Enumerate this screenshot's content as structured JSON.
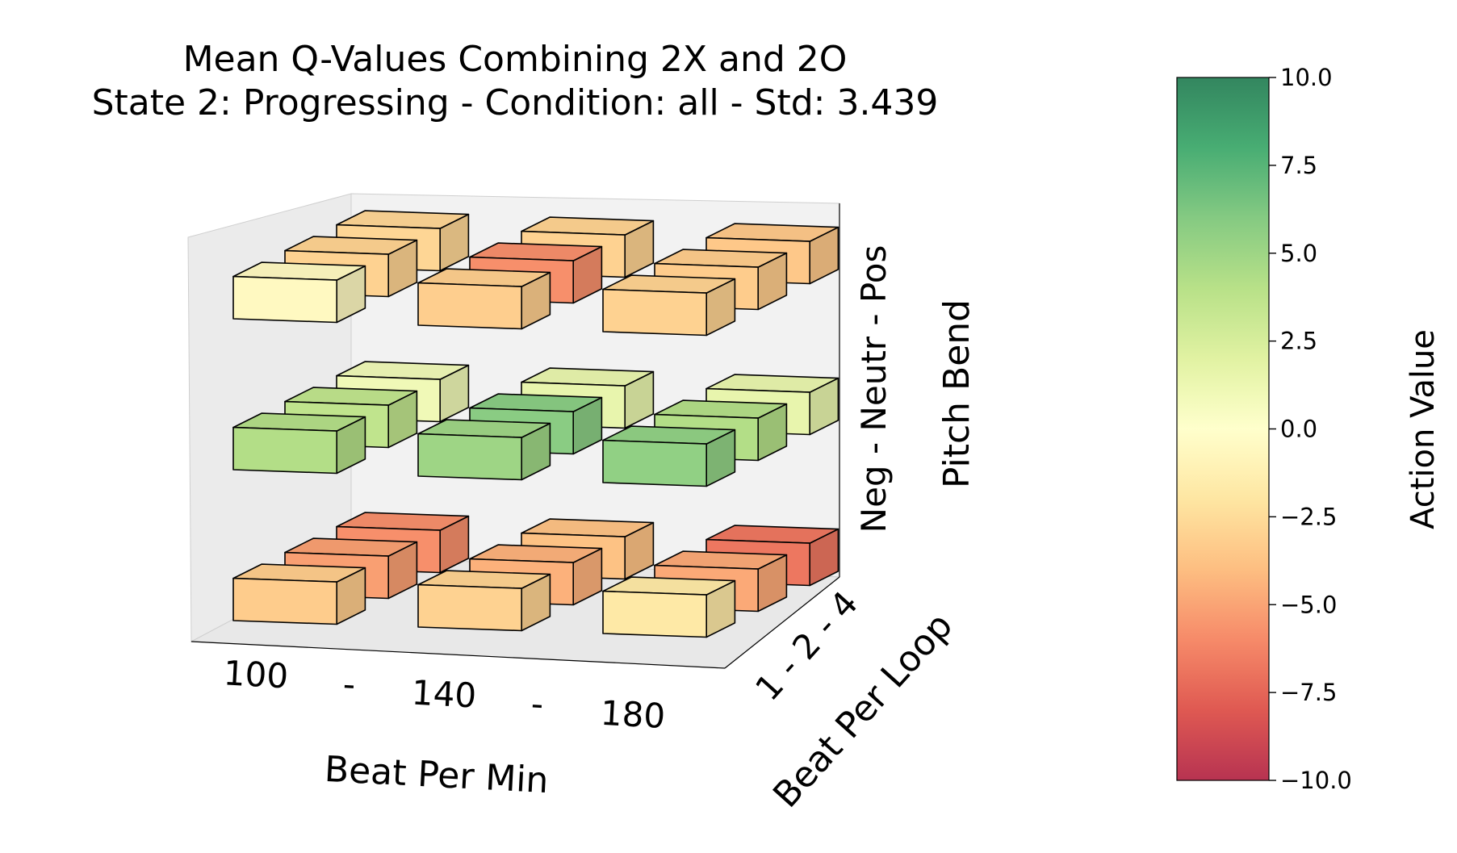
{
  "chart_data": {
    "type": "3d-bar",
    "title_lines": [
      "Mean Q-Values Combining 2X and 2O",
      "State 2: Progressing  -  Condition: all  -  Std: 3.439"
    ],
    "xlabel": "Beat Per Min",
    "ylabel": "Beat Per Loop",
    "zlabel": "Pitch Bend",
    "x_tick_text": [
      "100",
      "-",
      "140",
      "-",
      "180"
    ],
    "y_tick_text": "1 - 2 - 4",
    "z_tick_text": "Neg - Neutr - Pos",
    "x_categories": [
      "100",
      "140",
      "180"
    ],
    "y_categories": [
      "1",
      "2",
      "4"
    ],
    "z_categories": [
      "Neg",
      "Neutr",
      "Pos"
    ],
    "values": [
      {
        "bpm": "100",
        "bpl": "1",
        "pitch": "Pos",
        "value": -0.5
      },
      {
        "bpm": "100",
        "bpl": "2",
        "pitch": "Pos",
        "value": -3.0
      },
      {
        "bpm": "100",
        "bpl": "4",
        "pitch": "Pos",
        "value": -2.8
      },
      {
        "bpm": "140",
        "bpl": "1",
        "pitch": "Pos",
        "value": -3.2
      },
      {
        "bpm": "140",
        "bpl": "2",
        "pitch": "Pos",
        "value": -5.8
      },
      {
        "bpm": "140",
        "bpl": "4",
        "pitch": "Pos",
        "value": -3.0
      },
      {
        "bpm": "180",
        "bpl": "1",
        "pitch": "Pos",
        "value": -3.0
      },
      {
        "bpm": "180",
        "bpl": "2",
        "pitch": "Pos",
        "value": -3.3
      },
      {
        "bpm": "180",
        "bpl": "4",
        "pitch": "Pos",
        "value": -3.5
      },
      {
        "bpm": "100",
        "bpl": "1",
        "pitch": "Neutr",
        "value": 4.2
      },
      {
        "bpm": "100",
        "bpl": "2",
        "pitch": "Neutr",
        "value": 3.6
      },
      {
        "bpm": "100",
        "bpl": "4",
        "pitch": "Neutr",
        "value": 1.0
      },
      {
        "bpm": "140",
        "bpl": "1",
        "pitch": "Neutr",
        "value": 5.0
      },
      {
        "bpm": "140",
        "bpl": "2",
        "pitch": "Neutr",
        "value": 5.8
      },
      {
        "bpm": "140",
        "bpl": "4",
        "pitch": "Neutr",
        "value": 1.5
      },
      {
        "bpm": "180",
        "bpl": "1",
        "pitch": "Neutr",
        "value": 5.5
      },
      {
        "bpm": "180",
        "bpl": "2",
        "pitch": "Neutr",
        "value": 4.2
      },
      {
        "bpm": "180",
        "bpl": "4",
        "pitch": "Neutr",
        "value": 1.5
      },
      {
        "bpm": "100",
        "bpl": "1",
        "pitch": "Neg",
        "value": -3.3
      },
      {
        "bpm": "100",
        "bpl": "2",
        "pitch": "Neg",
        "value": -5.2
      },
      {
        "bpm": "100",
        "bpl": "4",
        "pitch": "Neg",
        "value": -5.8
      },
      {
        "bpm": "140",
        "bpl": "1",
        "pitch": "Neg",
        "value": -3.0
      },
      {
        "bpm": "140",
        "bpl": "2",
        "pitch": "Neg",
        "value": -4.5
      },
      {
        "bpm": "140",
        "bpl": "4",
        "pitch": "Neg",
        "value": -3.8
      },
      {
        "bpm": "180",
        "bpl": "1",
        "pitch": "Neg",
        "value": -1.8
      },
      {
        "bpm": "180",
        "bpl": "2",
        "pitch": "Neg",
        "value": -4.8
      },
      {
        "bpm": "180",
        "bpl": "4",
        "pitch": "Neg",
        "value": -6.8
      }
    ],
    "colorbar": {
      "label": "Action Value",
      "range": [
        -10,
        10
      ],
      "ticks": [
        "10.0",
        "7.5",
        "5.0",
        "2.5",
        "0.0",
        "−2.5",
        "−5.0",
        "−7.5",
        "−10.0"
      ],
      "tick_values": [
        10,
        7.5,
        5,
        2.5,
        0,
        -2.5,
        -5,
        -7.5,
        -10
      ],
      "colormap": "RdYlGn",
      "alpha": 0.8
    }
  }
}
